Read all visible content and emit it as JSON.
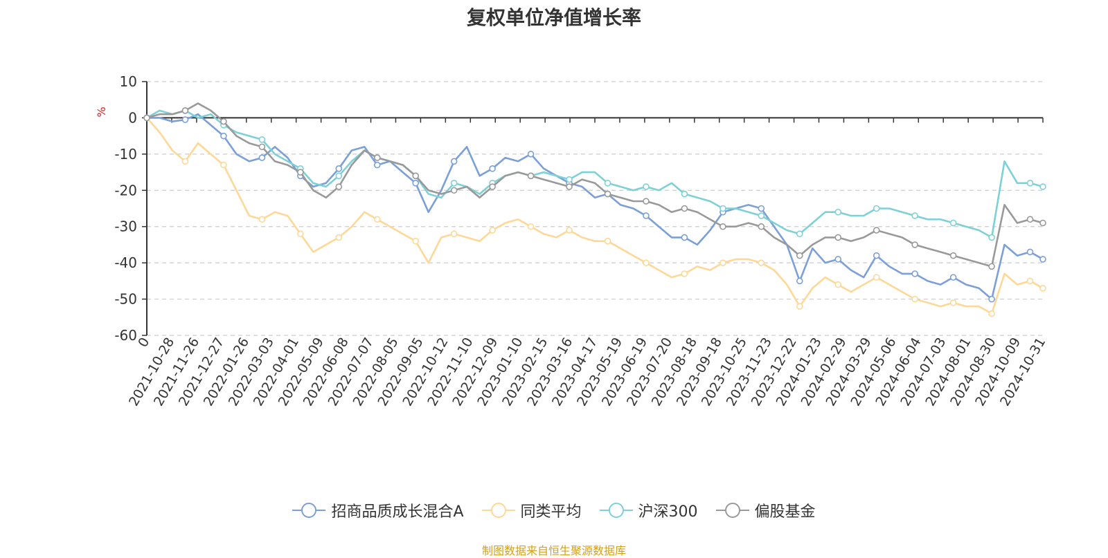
{
  "chart_data": {
    "type": "line",
    "title": "复权单位净值增长率",
    "ylabel": "%",
    "ylim": [
      -60,
      10
    ],
    "y_ticks": [
      10,
      0,
      -10,
      -20,
      -30,
      -40,
      -50,
      -60
    ],
    "x_tick_labels": [
      "0",
      "2021-10-28",
      "2021-11-26",
      "2021-12-27",
      "2022-01-26",
      "2022-03-03",
      "2022-04-01",
      "2022-05-09",
      "2022-06-08",
      "2022-07-07",
      "2022-08-05",
      "2022-09-05",
      "2022-10-12",
      "2022-11-10",
      "2022-12-09",
      "2023-01-10",
      "2023-02-15",
      "2023-03-16",
      "2023-04-17",
      "2023-05-19",
      "2023-06-19",
      "2023-07-20",
      "2023-08-18",
      "2023-09-18",
      "2023-10-25",
      "2023-11-23",
      "2023-12-22",
      "2024-01-23",
      "2024-02-29",
      "2024-03-29",
      "2024-05-06",
      "2024-06-04",
      "2024-07-03",
      "2024-08-01",
      "2024-08-30",
      "2024-10-09",
      "2024-10-31"
    ],
    "grid": true,
    "legend_position": "bottom",
    "series": [
      {
        "name": "招商品质成长混合A",
        "color": "#7b9fd8",
        "values": [
          0,
          0,
          -1,
          -0.5,
          1,
          -2,
          -5,
          -10,
          -12,
          -11,
          -8,
          -11,
          -16,
          -19,
          -18,
          -14,
          -9,
          -8,
          -13,
          -12,
          -15,
          -18,
          -26,
          -20,
          -12,
          -8,
          -16,
          -14,
          -11,
          -12,
          -10,
          -14,
          -16,
          -18,
          -19,
          -22,
          -21,
          -24,
          -25,
          -27,
          -30,
          -33,
          -33,
          -35,
          -31,
          -26,
          -25,
          -24,
          -25,
          -30,
          -35,
          -45,
          -36,
          -40,
          -39,
          -42,
          -44,
          -38,
          -41,
          -43,
          -43,
          -45,
          -46,
          -44,
          -46,
          -47,
          -50,
          -35,
          -38,
          -37,
          -39
        ]
      },
      {
        "name": "同类平均",
        "color": "#fdd896",
        "values": [
          0,
          -4,
          -9,
          -12,
          -7,
          -10,
          -13,
          -20,
          -27,
          -28,
          -26,
          -27,
          -32,
          -37,
          -35,
          -33,
          -30,
          -26,
          -28,
          -30,
          -32,
          -34,
          -40,
          -33,
          -32,
          -33,
          -34,
          -31,
          -29,
          -28,
          -30,
          -32,
          -33,
          -31,
          -33,
          -34,
          -34,
          -36,
          -38,
          -40,
          -42,
          -44,
          -43,
          -41,
          -42,
          -40,
          -39,
          -39,
          -40,
          -42,
          -46,
          -52,
          -47,
          -44,
          -46,
          -48,
          -46,
          -44,
          -46,
          -48,
          -50,
          -51,
          -52,
          -51,
          -52,
          -52,
          -54,
          -43,
          -46,
          -45,
          -47
        ]
      },
      {
        "name": "沪深300",
        "color": "#7dd1d6",
        "values": [
          0,
          2,
          1,
          2,
          0,
          1,
          -2,
          -4,
          -5,
          -6,
          -10,
          -12,
          -14,
          -18,
          -19,
          -16,
          -12,
          -9,
          -11,
          -12,
          -13,
          -16,
          -21,
          -22,
          -18,
          -19,
          -21,
          -18,
          -16,
          -15,
          -16,
          -15,
          -16,
          -17,
          -15,
          -15,
          -18,
          -19,
          -20,
          -19,
          -20,
          -18,
          -21,
          -22,
          -23,
          -25,
          -25,
          -26,
          -27,
          -29,
          -31,
          -32,
          -29,
          -26,
          -26,
          -27,
          -27,
          -25,
          -25,
          -26,
          -27,
          -28,
          -28,
          -29,
          -30,
          -31,
          -33,
          -12,
          -18,
          -18,
          -19
        ]
      },
      {
        "name": "偏股基金",
        "color": "#999999",
        "values": [
          0,
          1,
          1,
          2,
          4,
          2,
          -1,
          -5,
          -7,
          -8,
          -12,
          -13,
          -15,
          -20,
          -22,
          -19,
          -13,
          -9,
          -11,
          -12,
          -13,
          -16,
          -20,
          -21,
          -20,
          -19,
          -22,
          -19,
          -16,
          -15,
          -16,
          -17,
          -18,
          -19,
          -17,
          -18,
          -21,
          -22,
          -23,
          -23,
          -24,
          -26,
          -25,
          -26,
          -28,
          -30,
          -30,
          -29,
          -30,
          -33,
          -35,
          -38,
          -35,
          -33,
          -33,
          -34,
          -33,
          -31,
          -32,
          -33,
          -35,
          -36,
          -37,
          -38,
          -39,
          -40,
          -41,
          -24,
          -29,
          -28,
          -29
        ]
      }
    ]
  },
  "axis": {
    "y_unit": "%"
  },
  "legend": {
    "items": [
      {
        "label": "招商品质成长混合A",
        "color": "#7b9fd8"
      },
      {
        "label": "同类平均",
        "color": "#fdd896"
      },
      {
        "label": "沪深300",
        "color": "#7dd1d6"
      },
      {
        "label": "偏股基金",
        "color": "#999999"
      }
    ]
  },
  "source_note": "制图数据来自恒生聚源数据库"
}
